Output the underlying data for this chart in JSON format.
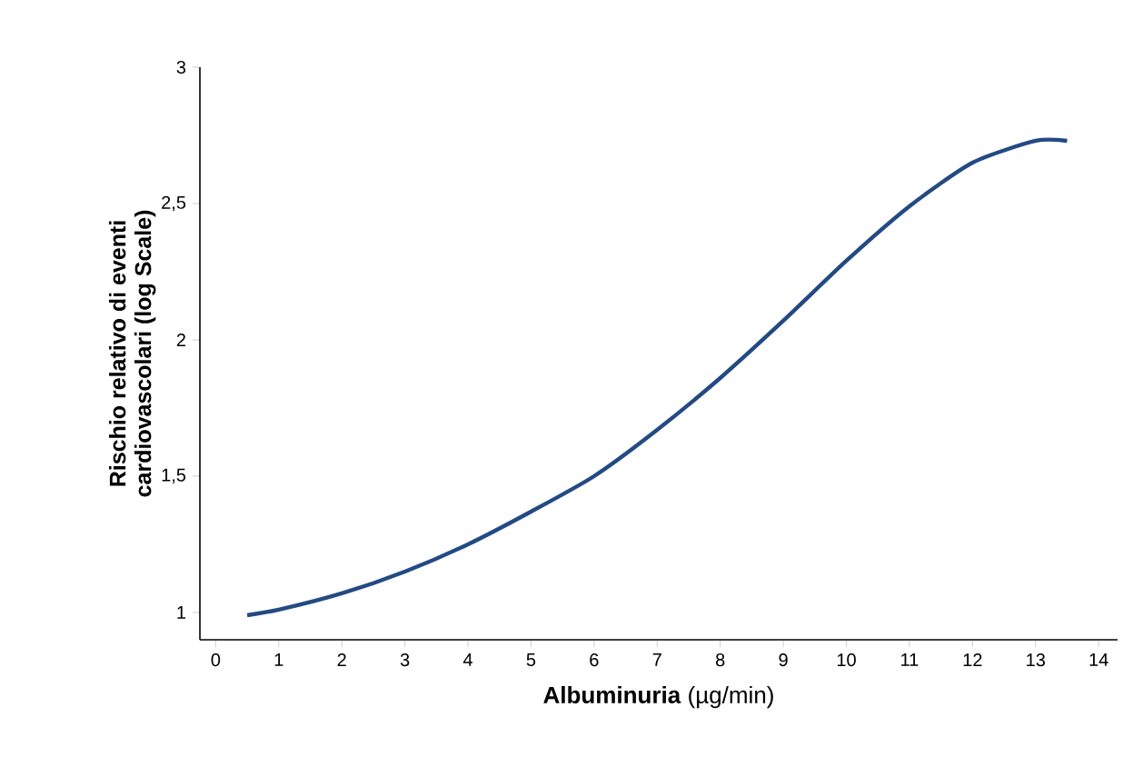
{
  "chart_data": {
    "type": "line",
    "xlabel": "**Albuminuria** (µg/min)",
    "ylabel": "Rischio relativo di eventi cardiovascolari (log Scale)",
    "x": [
      0.5,
      1,
      2,
      3,
      4,
      5,
      6,
      7,
      8,
      9,
      10,
      11,
      12,
      13,
      13.5
    ],
    "series": [
      {
        "color": "#234a83",
        "values": [
          0.99,
          1.01,
          1.07,
          1.15,
          1.25,
          1.37,
          1.5,
          1.67,
          1.86,
          2.07,
          2.29,
          2.49,
          2.65,
          2.73,
          2.73
        ]
      }
    ],
    "xlim": [
      -0.25,
      14.3
    ],
    "ylim": [
      0.9,
      3
    ],
    "xticks": [
      0,
      1,
      2,
      3,
      4,
      5,
      6,
      7,
      8,
      9,
      10,
      11,
      12,
      13,
      14
    ],
    "yticks": [
      1,
      {
        "value": 1.5,
        "label": "1,5"
      },
      2,
      {
        "value": 2.5,
        "label": "2,5"
      },
      3
    ],
    "marker": "none",
    "line_style": "solid"
  }
}
